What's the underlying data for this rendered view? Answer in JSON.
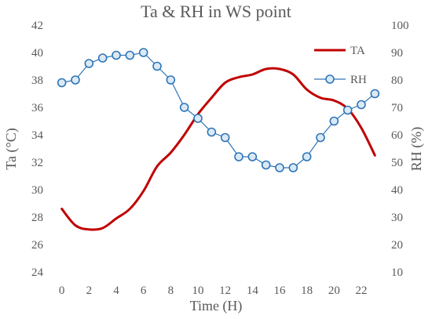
{
  "chart_data": {
    "type": "line",
    "title": "Ta & RH in WS point",
    "xlabel": "Time (H)",
    "ylabel_left": "Ta (°C)",
    "ylabel_right": "RH (%)",
    "x_ticks": [
      "0",
      "2",
      "4",
      "6",
      "8",
      "10",
      "12",
      "14",
      "16",
      "18",
      "20",
      "22"
    ],
    "xlim": [
      -0.5,
      23.5
    ],
    "ylim_left": [
      24,
      42
    ],
    "ylim_right": [
      10,
      100
    ],
    "y_left_ticks": [
      "24",
      "26",
      "28",
      "30",
      "32",
      "34",
      "36",
      "38",
      "40",
      "42"
    ],
    "y_right_ticks": [
      "10",
      "20",
      "30",
      "40",
      "50",
      "60",
      "70",
      "80",
      "90",
      "100"
    ],
    "grid": false,
    "legend_position": "top-right",
    "series": [
      {
        "name": "TA",
        "axis": "left",
        "color": "#c00000",
        "marker": "none",
        "x": [
          0,
          1,
          2,
          3,
          4,
          5,
          6,
          7,
          8,
          9,
          10,
          11,
          12,
          13,
          14,
          15,
          16,
          17,
          18,
          19,
          20,
          21,
          22,
          23
        ],
        "values": [
          28.6,
          27.4,
          27.1,
          27.2,
          27.9,
          28.6,
          29.9,
          31.7,
          32.7,
          34.0,
          35.5,
          36.7,
          37.8,
          38.2,
          38.4,
          38.8,
          38.8,
          38.4,
          37.3,
          36.7,
          36.5,
          35.9,
          34.5,
          32.5
        ]
      },
      {
        "name": "RH",
        "axis": "right",
        "color": "#2e75b6",
        "marker": "circle",
        "x": [
          0,
          1,
          2,
          3,
          4,
          5,
          6,
          7,
          8,
          9,
          10,
          11,
          12,
          13,
          14,
          15,
          16,
          17,
          18,
          19,
          20,
          21,
          22,
          23
        ],
        "values": [
          79,
          80,
          86,
          88,
          89,
          89,
          90,
          85,
          80,
          70,
          66,
          61,
          59,
          52,
          52,
          49,
          48,
          48,
          52,
          59,
          65,
          69,
          71,
          75
        ]
      }
    ]
  }
}
